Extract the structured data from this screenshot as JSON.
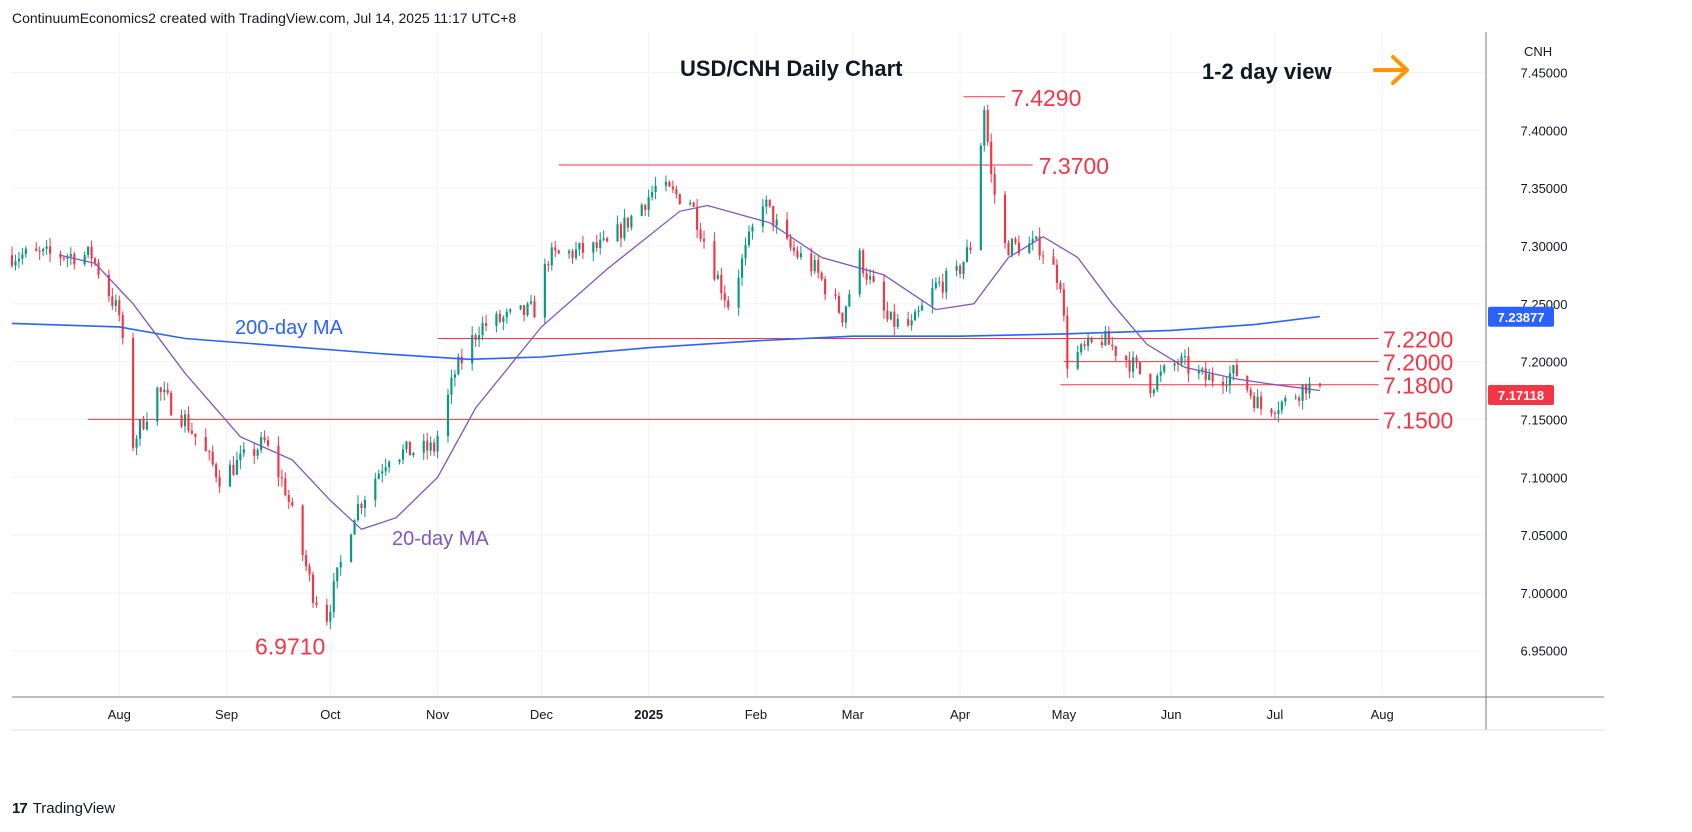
{
  "header": {
    "text": "ContinuumEconomics2 created with TradingView.com, Jul 14, 2025 11:17 UTC+8"
  },
  "footer": {
    "brand": "TradingView",
    "logo_glyph": "17"
  },
  "colors": {
    "up": "#089981",
    "down": "#f23645",
    "ma200": "#2962ff",
    "ma20": "#7e57c2",
    "level": "#f23645",
    "arrow": "#ff9800",
    "grid": "#f0f3fa",
    "axis_text": "#131722"
  },
  "chart_data": {
    "type": "candlestick",
    "title": "USD/CNH Daily Chart",
    "view_label": "1-2 day view",
    "view_icon": "arrow-right-icon",
    "currency": "CNH",
    "ylim": [
      6.91,
      7.485
    ],
    "y_ticks": [
      7.45,
      7.4,
      7.35,
      7.3,
      7.25,
      7.2,
      7.15,
      7.1,
      7.05,
      7.0,
      6.95
    ],
    "x_range": [
      "2024-07-01",
      "2025-08-31"
    ],
    "x_ticks": [
      {
        "label": "Aug",
        "date": "2024-08-01"
      },
      {
        "label": "Sep",
        "date": "2024-09-01"
      },
      {
        "label": "Oct",
        "date": "2024-10-01"
      },
      {
        "label": "Nov",
        "date": "2024-11-01"
      },
      {
        "label": "Dec",
        "date": "2024-12-01"
      },
      {
        "label": "2025",
        "date": "2025-01-01",
        "bold": true
      },
      {
        "label": "Feb",
        "date": "2025-02-01"
      },
      {
        "label": "Mar",
        "date": "2025-03-01"
      },
      {
        "label": "Apr",
        "date": "2025-04-01"
      },
      {
        "label": "May",
        "date": "2025-05-01"
      },
      {
        "label": "Jun",
        "date": "2025-06-01"
      },
      {
        "label": "Jul",
        "date": "2025-07-01"
      },
      {
        "label": "Aug",
        "date": "2025-08-01"
      }
    ],
    "price_anchors": [
      {
        "date": "2024-07-01",
        "close": 7.292
      },
      {
        "date": "2024-07-24",
        "close": 7.292
      },
      {
        "date": "2024-08-01",
        "close": 7.24
      },
      {
        "date": "2024-08-05",
        "close": 7.13
      },
      {
        "date": "2024-08-12",
        "close": 7.175
      },
      {
        "date": "2024-08-20",
        "close": 7.15
      },
      {
        "date": "2024-08-30",
        "close": 7.1
      },
      {
        "date": "2024-09-12",
        "close": 7.13
      },
      {
        "date": "2024-09-18",
        "close": 7.09
      },
      {
        "date": "2024-09-26",
        "close": 7.0
      },
      {
        "date": "2024-09-30",
        "close": 6.98
      },
      {
        "date": "2024-10-08",
        "close": 7.07
      },
      {
        "date": "2024-10-18",
        "close": 7.12
      },
      {
        "date": "2024-10-31",
        "close": 7.125
      },
      {
        "date": "2024-11-06",
        "close": 7.19
      },
      {
        "date": "2024-11-13",
        "close": 7.23
      },
      {
        "date": "2024-11-29",
        "close": 7.245
      },
      {
        "date": "2024-12-03",
        "close": 7.29
      },
      {
        "date": "2024-12-20",
        "close": 7.3
      },
      {
        "date": "2025-01-03",
        "close": 7.35
      },
      {
        "date": "2025-01-13",
        "close": 7.34
      },
      {
        "date": "2025-01-20",
        "close": 7.28
      },
      {
        "date": "2025-01-24",
        "close": 7.25
      },
      {
        "date": "2025-02-03",
        "close": 7.34
      },
      {
        "date": "2025-02-10",
        "close": 7.3
      },
      {
        "date": "2025-02-18",
        "close": 7.28
      },
      {
        "date": "2025-02-26",
        "close": 7.24
      },
      {
        "date": "2025-03-03",
        "close": 7.29
      },
      {
        "date": "2025-03-11",
        "close": 7.235
      },
      {
        "date": "2025-03-18",
        "close": 7.23
      },
      {
        "date": "2025-03-25",
        "close": 7.265
      },
      {
        "date": "2025-03-31",
        "close": 7.275
      },
      {
        "date": "2025-04-04",
        "close": 7.3
      },
      {
        "date": "2025-04-08",
        "close": 7.42
      },
      {
        "date": "2025-04-10",
        "close": 7.36
      },
      {
        "date": "2025-04-14",
        "close": 7.3
      },
      {
        "date": "2025-04-24",
        "close": 7.3
      },
      {
        "date": "2025-04-30",
        "close": 7.27
      },
      {
        "date": "2025-05-02",
        "close": 7.2
      },
      {
        "date": "2025-05-12",
        "close": 7.22
      },
      {
        "date": "2025-05-20",
        "close": 7.2
      },
      {
        "date": "2025-05-26",
        "close": 7.18
      },
      {
        "date": "2025-06-03",
        "close": 7.2
      },
      {
        "date": "2025-06-11",
        "close": 7.185
      },
      {
        "date": "2025-06-20",
        "close": 7.19
      },
      {
        "date": "2025-06-27",
        "close": 7.16
      },
      {
        "date": "2025-07-04",
        "close": 7.165
      },
      {
        "date": "2025-07-10",
        "close": 7.18
      },
      {
        "date": "2025-07-14",
        "close": 7.171
      }
    ],
    "ma200": {
      "label": "200-day MA",
      "last_value": "7.23877",
      "points": [
        {
          "date": "2024-07-01",
          "value": 7.233
        },
        {
          "date": "2024-08-01",
          "value": 7.23
        },
        {
          "date": "2024-08-20",
          "value": 7.22
        },
        {
          "date": "2024-09-15",
          "value": 7.214
        },
        {
          "date": "2024-10-15",
          "value": 7.207
        },
        {
          "date": "2024-11-10",
          "value": 7.202
        },
        {
          "date": "2024-12-01",
          "value": 7.204
        },
        {
          "date": "2025-01-01",
          "value": 7.212
        },
        {
          "date": "2025-02-01",
          "value": 7.218
        },
        {
          "date": "2025-03-01",
          "value": 7.222
        },
        {
          "date": "2025-04-01",
          "value": 7.222
        },
        {
          "date": "2025-05-01",
          "value": 7.224
        },
        {
          "date": "2025-06-01",
          "value": 7.227
        },
        {
          "date": "2025-06-25",
          "value": 7.232
        },
        {
          "date": "2025-07-14",
          "value": 7.239
        }
      ]
    },
    "ma20": {
      "label": "20-day MA",
      "points": [
        {
          "date": "2024-07-15",
          "value": 7.292
        },
        {
          "date": "2024-07-25",
          "value": 7.285
        },
        {
          "date": "2024-08-05",
          "value": 7.25
        },
        {
          "date": "2024-08-20",
          "value": 7.19
        },
        {
          "date": "2024-09-05",
          "value": 7.135
        },
        {
          "date": "2024-09-20",
          "value": 7.115
        },
        {
          "date": "2024-10-01",
          "value": 7.08
        },
        {
          "date": "2024-10-10",
          "value": 7.055
        },
        {
          "date": "2024-10-20",
          "value": 7.065
        },
        {
          "date": "2024-11-01",
          "value": 7.1
        },
        {
          "date": "2024-11-12",
          "value": 7.16
        },
        {
          "date": "2024-12-01",
          "value": 7.23
        },
        {
          "date": "2024-12-20",
          "value": 7.28
        },
        {
          "date": "2025-01-10",
          "value": 7.33
        },
        {
          "date": "2025-01-18",
          "value": 7.335
        },
        {
          "date": "2025-02-05",
          "value": 7.32
        },
        {
          "date": "2025-02-20",
          "value": 7.29
        },
        {
          "date": "2025-03-10",
          "value": 7.275
        },
        {
          "date": "2025-03-25",
          "value": 7.245
        },
        {
          "date": "2025-04-05",
          "value": 7.25
        },
        {
          "date": "2025-04-15",
          "value": 7.29
        },
        {
          "date": "2025-04-25",
          "value": 7.308
        },
        {
          "date": "2025-05-05",
          "value": 7.29
        },
        {
          "date": "2025-05-15",
          "value": 7.25
        },
        {
          "date": "2025-05-25",
          "value": 7.215
        },
        {
          "date": "2025-06-05",
          "value": 7.195
        },
        {
          "date": "2025-06-20",
          "value": 7.185
        },
        {
          "date": "2025-07-01",
          "value": 7.18
        },
        {
          "date": "2025-07-14",
          "value": 7.175
        }
      ]
    },
    "levels": [
      {
        "label": "7.4290",
        "value": 7.429,
        "from": "2025-04-02",
        "to": "2025-04-14"
      },
      {
        "label": "7.3700",
        "value": 7.37,
        "from": "2024-12-06",
        "to": "2025-04-22"
      },
      {
        "label": "7.2200",
        "value": 7.22,
        "from": "2024-11-01",
        "to": "2025-07-31"
      },
      {
        "label": "7.2000",
        "value": 7.2,
        "from": "2025-05-01",
        "to": "2025-07-31"
      },
      {
        "label": "7.1800",
        "value": 7.18,
        "from": "2025-04-30",
        "to": "2025-07-31"
      },
      {
        "label": "7.1500",
        "value": 7.15,
        "from": "2024-07-23",
        "to": "2025-07-31"
      }
    ],
    "low_label": {
      "label": "6.9710",
      "value": 6.971,
      "date": "2024-09-30"
    },
    "last_price": {
      "label": "7.17118",
      "value": 7.17118
    }
  }
}
